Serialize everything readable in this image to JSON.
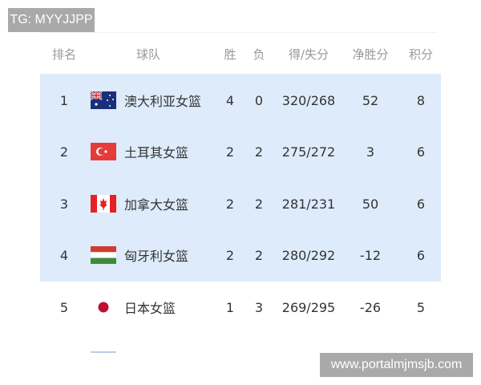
{
  "watermarks": {
    "top_left": "TG: MYYJJPP",
    "bottom_right": "www.portalmjmsjb.com"
  },
  "headers": {
    "rank": "排名",
    "team": "球队",
    "wins": "胜",
    "losses": "负",
    "score": "得/失分",
    "net": "净胜分",
    "points": "积分"
  },
  "highlight_color": "#ddebfa",
  "rows": [
    {
      "rank": "1",
      "flag": "australia-flag-icon",
      "team": "澳大利亚女篮",
      "wins": "4",
      "losses": "0",
      "score": "320/268",
      "net": "52",
      "points": "8"
    },
    {
      "rank": "2",
      "flag": "turkey-flag-icon",
      "team": "土耳其女篮",
      "wins": "2",
      "losses": "2",
      "score": "275/272",
      "net": "3",
      "points": "6"
    },
    {
      "rank": "3",
      "flag": "canada-flag-icon",
      "team": "加拿大女篮",
      "wins": "2",
      "losses": "2",
      "score": "281/231",
      "net": "50",
      "points": "6"
    },
    {
      "rank": "4",
      "flag": "hungary-flag-icon",
      "team": "匈牙利女篮",
      "wins": "2",
      "losses": "2",
      "score": "280/292",
      "net": "-12",
      "points": "6"
    },
    {
      "rank": "5",
      "flag": "japan-flag-icon",
      "team": "日本女篮",
      "wins": "1",
      "losses": "3",
      "score": "269/295",
      "net": "-26",
      "points": "5"
    }
  ]
}
